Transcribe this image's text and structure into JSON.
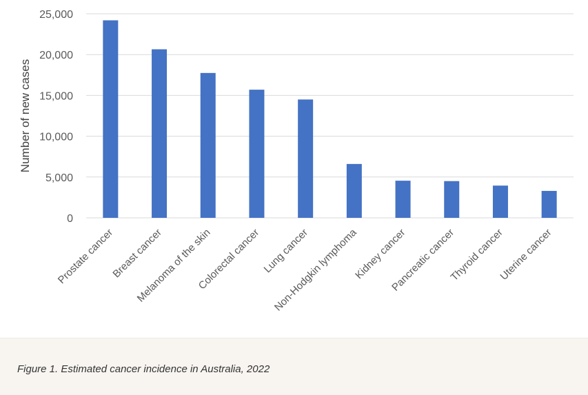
{
  "chart_data": {
    "type": "bar",
    "title": "",
    "xlabel": "",
    "ylabel": "Number of new cases",
    "categories": [
      "Prostate cancer",
      "Breast cancer",
      "Melanoma of the skin",
      "Colorectal cancer",
      "Lung cancer",
      "Non-Hodgkin lymphoma",
      "Kidney cancer",
      "Pancreatic cancer",
      "Thyroid cancer",
      "Uterine cancer"
    ],
    "values": [
      24200,
      20650,
      17750,
      15700,
      14500,
      6600,
      4550,
      4500,
      3950,
      3300
    ],
    "ylim": [
      0,
      25000
    ],
    "yticks": [
      0,
      5000,
      10000,
      15000,
      20000,
      25000
    ],
    "ytick_labels": [
      "0",
      "5,000",
      "10,000",
      "15,000",
      "20,000",
      "25,000"
    ],
    "grid": true,
    "legend": "none",
    "bar_color": "#4472c4",
    "grid_color": "#d9d9d9"
  },
  "caption": {
    "text": "Figure 1. Estimated cancer incidence in Australia, 2022"
  }
}
